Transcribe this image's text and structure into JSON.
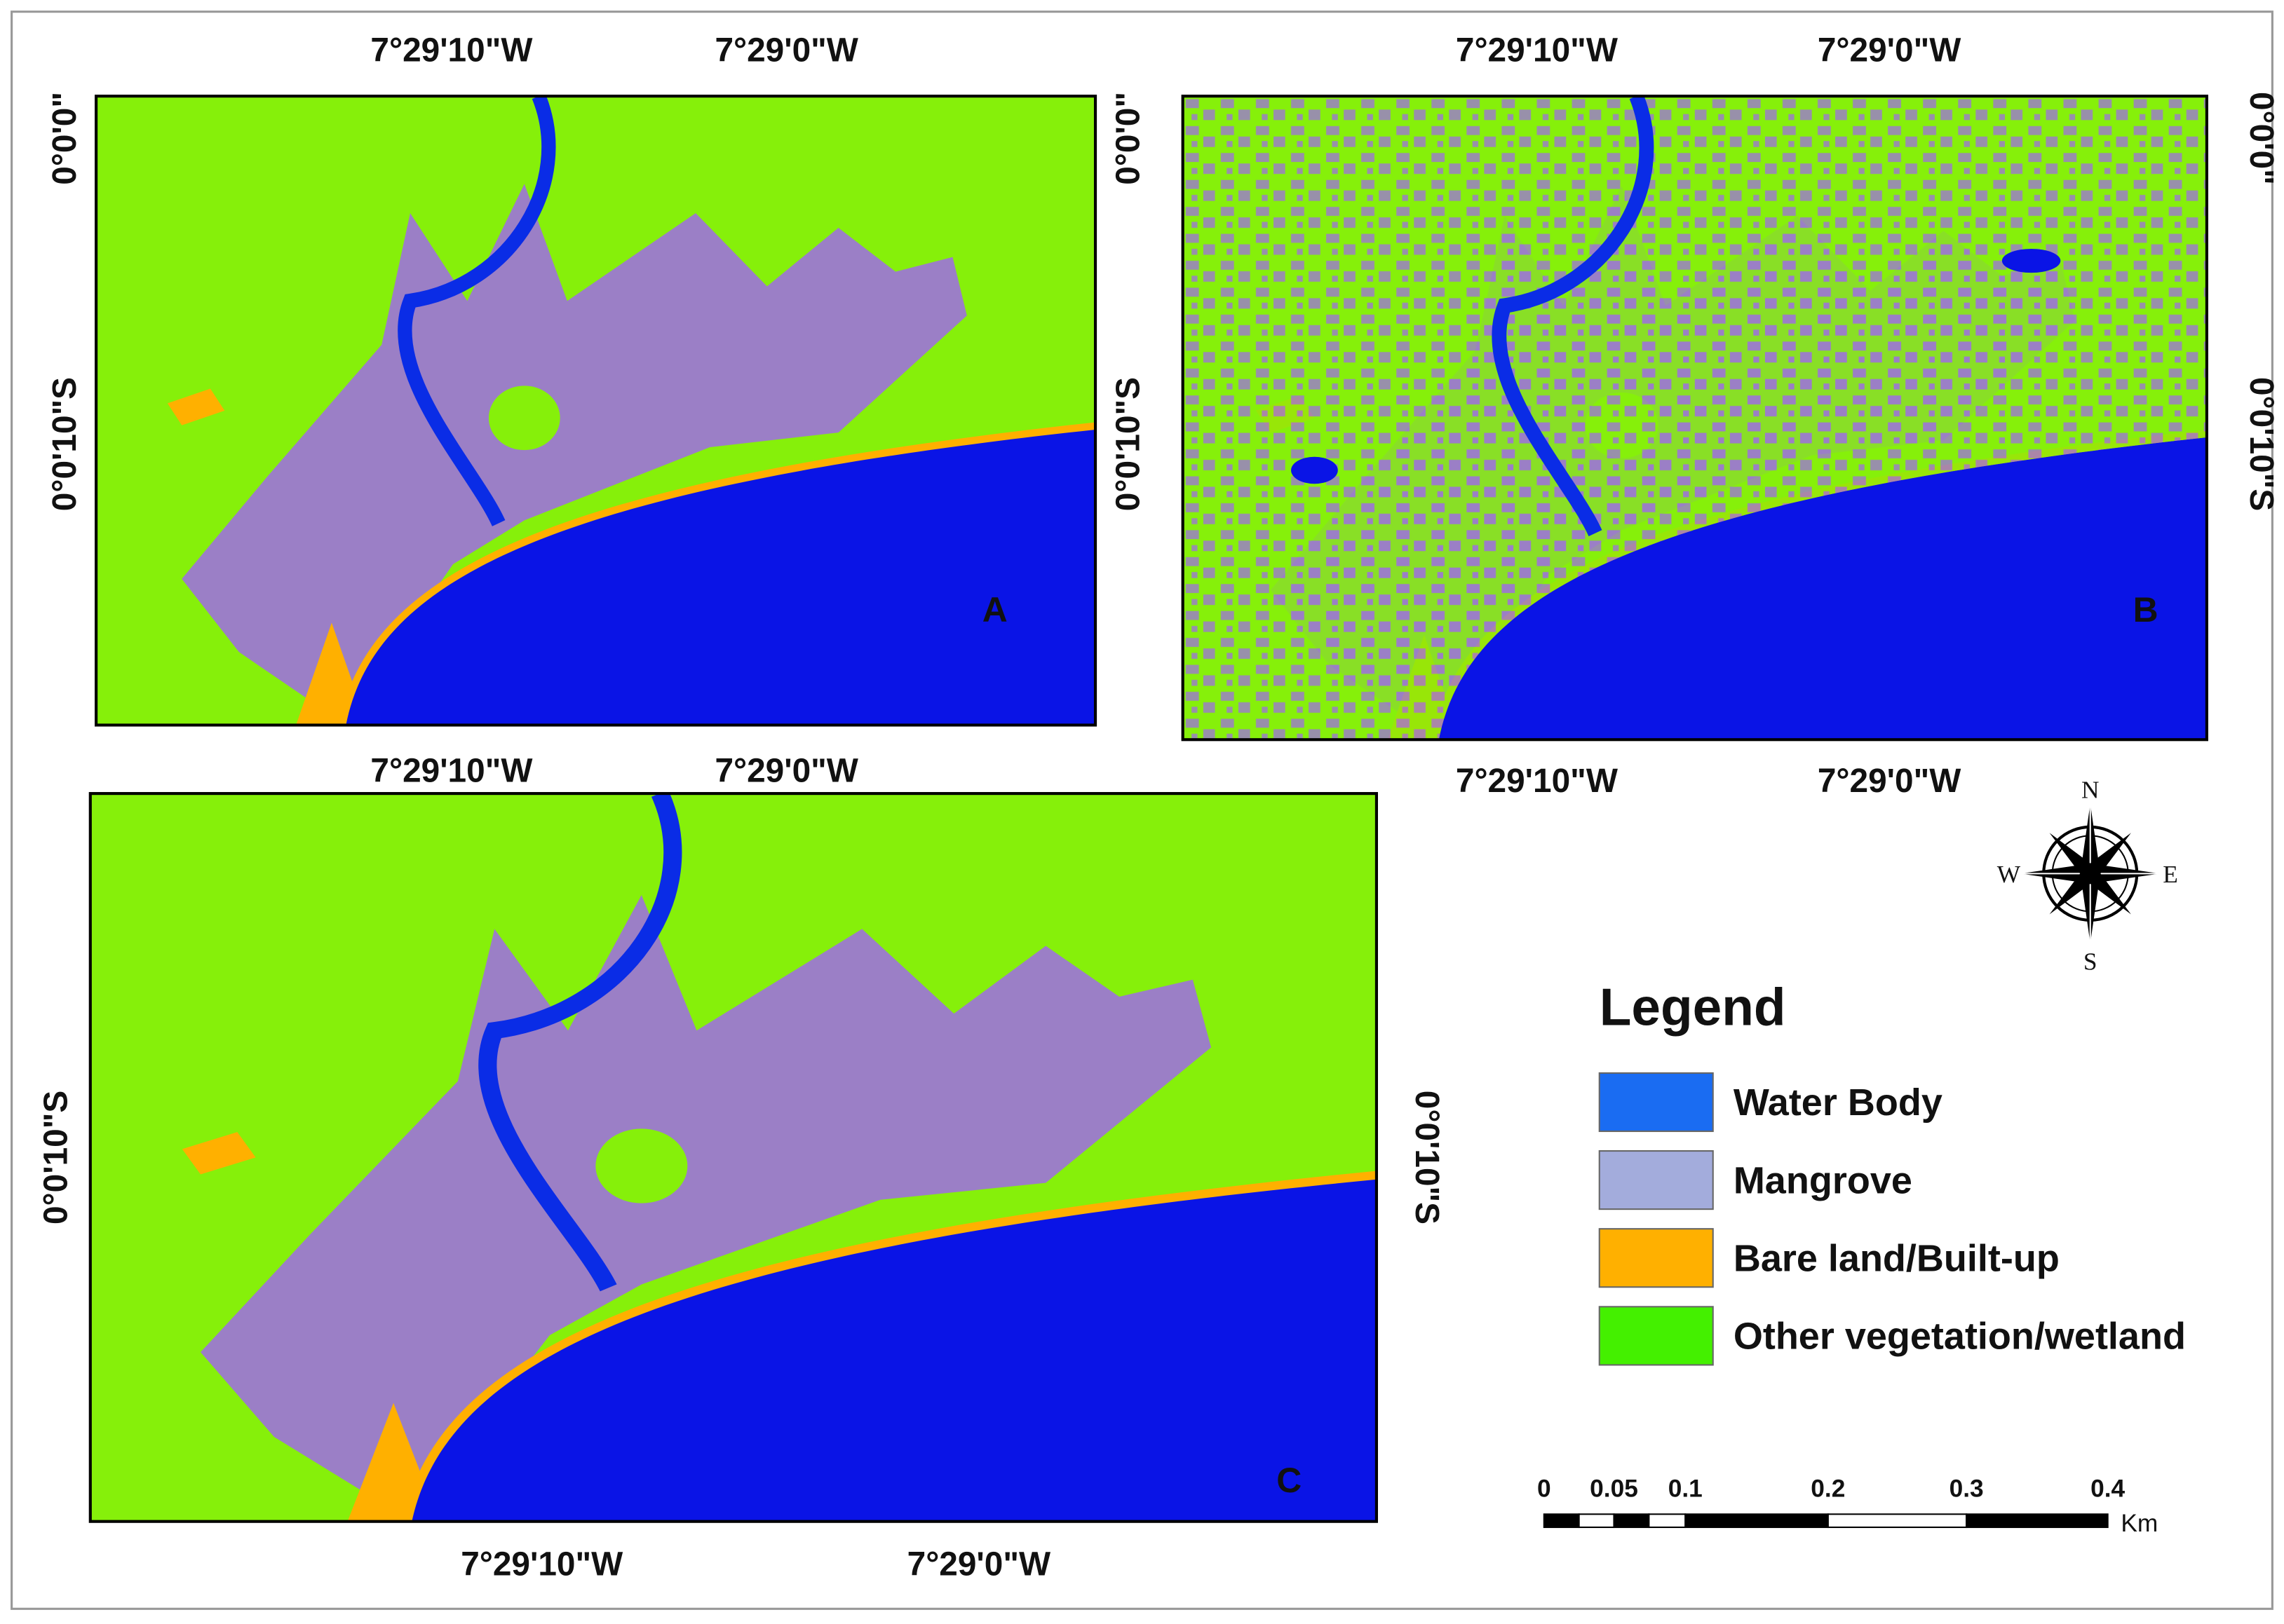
{
  "panels": [
    {
      "label": "A",
      "top_labels": [
        "7°29'10\"W",
        "7°29'0\"W"
      ],
      "left_labels": [
        "0°0'0\"",
        "0°0'10\"S"
      ]
    },
    {
      "label": "B",
      "top_labels": [
        "7°29'10\"W",
        "7°29'0\"W"
      ],
      "bottom_labels": [
        "7°29'10\"W",
        "7°29'0\"W"
      ],
      "left_labels": [
        "0°0'0\"",
        "0°0'10\"S"
      ],
      "right_labels": [
        "0°0'0\"",
        "0°0'10\"S"
      ]
    },
    {
      "label": "C",
      "top_labels": [
        "7°29'10\"W",
        "7°29'0\"W"
      ],
      "bottom_labels": [
        "7°29'10\"W",
        "7°29'0\"W"
      ],
      "left_labels": [
        "0°0'10\"S"
      ],
      "right_labels": [
        "0°0'10\"S"
      ]
    }
  ],
  "legend": {
    "title": "Legend",
    "items": [
      {
        "label": "Water Body",
        "color": "#1a6cf2"
      },
      {
        "label": "Mangrove",
        "color": "#a3acdc"
      },
      {
        "label": "Bare land/Built-up",
        "color": "#ffb000"
      },
      {
        "label": "Other vegetation/wetland",
        "color": "#44f000"
      }
    ]
  },
  "compass": {
    "n": "N",
    "s": "S",
    "w": "W",
    "e": "E"
  },
  "scale_bar": {
    "labels": [
      "0",
      "0.05",
      "0.1",
      "0.2",
      "0.3",
      "0.4"
    ],
    "unit": "Km"
  }
}
